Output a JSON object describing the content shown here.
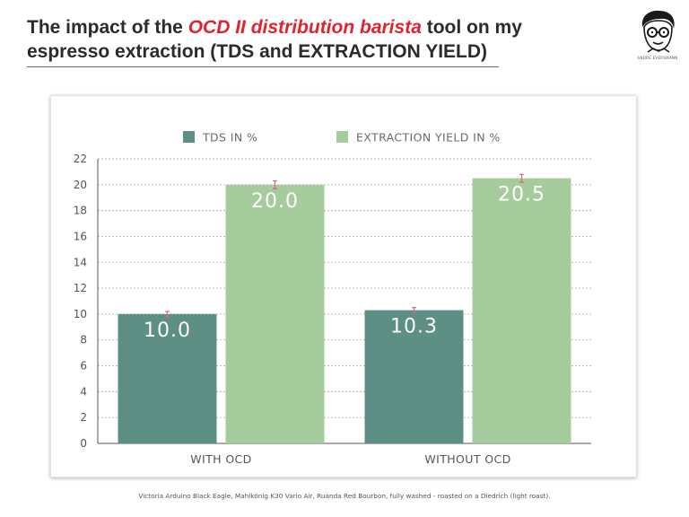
{
  "header": {
    "title_before": "The impact of the ",
    "title_accent": "OCD II distribution barista",
    "title_after": " tool on my espresso extraction (TDS and EXTRACTION YIELD)",
    "logo_caption": "ANDRE EVERSMANN"
  },
  "footnote": "Victoria Arduino Black Eagle, Mahlkönig K30 Vario Air, Ruanda Red Bourbon, fully washed - roasted on a Diedrich (light roast).",
  "colors": {
    "tds": "#5e8f85",
    "extraction": "#a6cb9c",
    "error_bar": "#d06a85",
    "title_accent": "#e0232f"
  },
  "chart_data": {
    "type": "bar",
    "title": "",
    "xlabel": "",
    "ylabel": "",
    "categories": [
      "WITH OCD",
      "WITHOUT  OCD"
    ],
    "series": [
      {
        "name": "TDS IN %",
        "values": [
          10.0,
          10.3
        ],
        "labels": [
          "10.0",
          "10.3"
        ],
        "error": [
          0.2,
          0.2
        ]
      },
      {
        "name": "EXTRACTION YIELD IN %",
        "values": [
          20.0,
          20.5
        ],
        "labels": [
          "20.0",
          "20.5"
        ],
        "error": [
          0.3,
          0.3
        ]
      }
    ],
    "ylim": [
      0,
      22
    ],
    "yticks": [
      0,
      2,
      4,
      6,
      8,
      10,
      12,
      14,
      16,
      18,
      20,
      22
    ],
    "grid": true,
    "legend": "top-center"
  }
}
